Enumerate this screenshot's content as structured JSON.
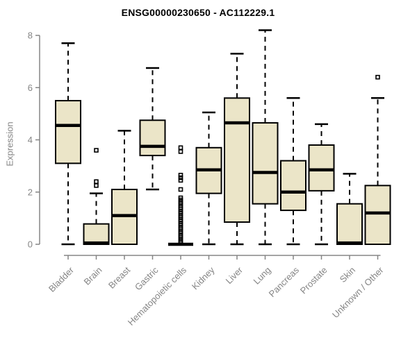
{
  "page": {
    "background": "#ffffff"
  },
  "chart_data": {
    "type": "boxplot",
    "title": "ENSG00000230650 - AC112229.1",
    "ylabel": "Expression",
    "xlabel": "",
    "ylim": [
      0,
      8
    ],
    "yticks": [
      0,
      2,
      4,
      6,
      8
    ],
    "grid": false,
    "legend": "none",
    "colors": {
      "box_fill": "#EBE5C8",
      "box_border": "#000000",
      "median": "#000000",
      "whisker": "#000000",
      "outlier": "#000000",
      "axis": "#858585",
      "tick_text": "#858585",
      "title_text": "#000000"
    },
    "categories": [
      "Bladder",
      "Brain",
      "Breast",
      "Gastric",
      "Hematopoietic cells",
      "Kidney",
      "Liver",
      "Lung",
      "Pancreas",
      "Prostate",
      "Skin",
      "Unknown / Other"
    ],
    "series": [
      {
        "label": "Bladder",
        "whislo": 0,
        "q1": 3.1,
        "med": 4.55,
        "q3": 5.5,
        "whishi": 7.7,
        "outliers": []
      },
      {
        "label": "Brain",
        "whislo": 0,
        "q1": 0,
        "med": 0.05,
        "q3": 0.78,
        "whishi": 1.95,
        "outliers": [
          2.25,
          2.4,
          3.6
        ]
      },
      {
        "label": "Breast",
        "whislo": 0,
        "q1": 0,
        "med": 1.1,
        "q3": 2.1,
        "whishi": 4.35,
        "outliers": []
      },
      {
        "label": "Gastric",
        "whislo": 2.1,
        "q1": 3.4,
        "med": 3.75,
        "q3": 4.75,
        "whishi": 6.75,
        "outliers": []
      },
      {
        "label": "Hematopoietic cells",
        "whislo": 0,
        "q1": 0,
        "med": 0,
        "q3": 0,
        "whishi": 0,
        "outliers": [
          3.7,
          3.55,
          2.65,
          2.55,
          2.45,
          2.1,
          1.78,
          1.7,
          1.62,
          1.55,
          1.47,
          1.4,
          1.33,
          1.25,
          1.18,
          1.1,
          1.03,
          0.95,
          0.88,
          0.8,
          0.73,
          0.65,
          0.58,
          0.5,
          0.43,
          0.35,
          0.28,
          0.2,
          0.12,
          0.05
        ]
      },
      {
        "label": "Kidney",
        "whislo": 0,
        "q1": 1.95,
        "med": 2.85,
        "q3": 3.7,
        "whishi": 5.05,
        "outliers": []
      },
      {
        "label": "Liver",
        "whislo": 0,
        "q1": 0.85,
        "med": 4.65,
        "q3": 5.6,
        "whishi": 7.3,
        "outliers": []
      },
      {
        "label": "Lung",
        "whislo": 0,
        "q1": 1.55,
        "med": 2.75,
        "q3": 4.65,
        "whishi": 8.2,
        "outliers": []
      },
      {
        "label": "Pancreas",
        "whislo": 0,
        "q1": 1.3,
        "med": 2.0,
        "q3": 3.2,
        "whishi": 5.6,
        "outliers": []
      },
      {
        "label": "Prostate",
        "whislo": 0,
        "q1": 2.05,
        "med": 2.85,
        "q3": 3.8,
        "whishi": 4.6,
        "outliers": []
      },
      {
        "label": "Skin",
        "whislo": 0,
        "q1": 0,
        "med": 0.05,
        "q3": 1.55,
        "whishi": 2.7,
        "outliers": []
      },
      {
        "label": "Unknown / Other",
        "whislo": 0,
        "q1": 0,
        "med": 1.2,
        "q3": 2.25,
        "whishi": 5.6,
        "outliers": [
          6.4
        ]
      }
    ]
  }
}
